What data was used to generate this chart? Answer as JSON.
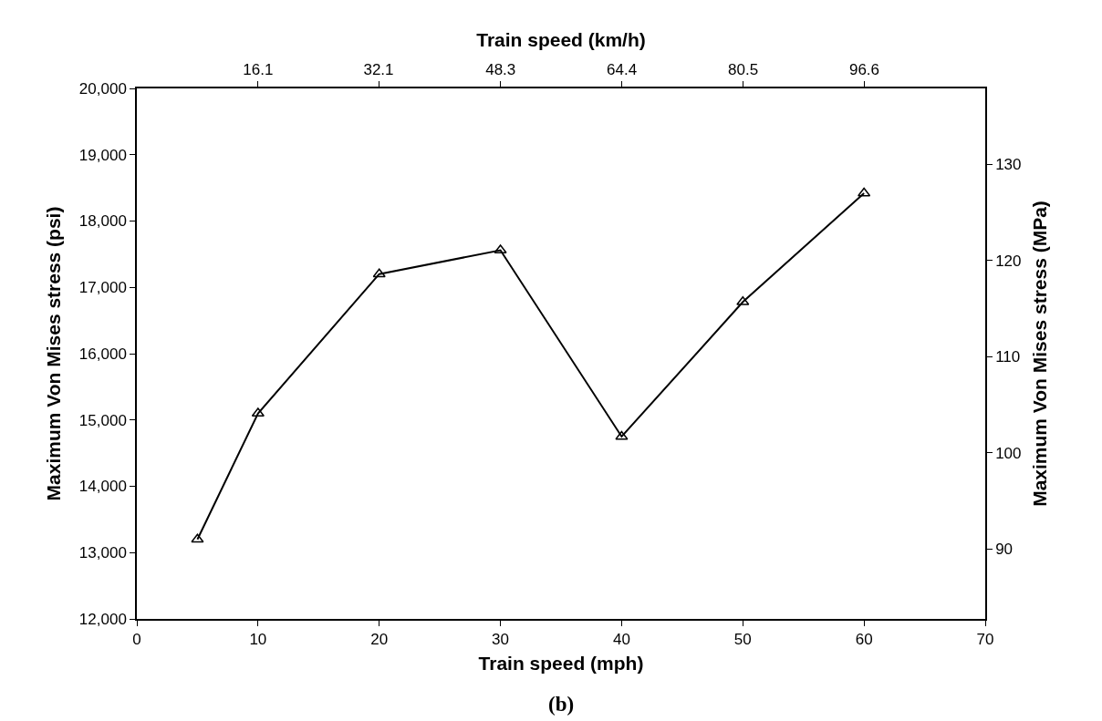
{
  "chart_data": {
    "type": "line",
    "xlabel": "Train speed (mph)",
    "ylabel": "Maximum Von Mises stress (psi)",
    "y2label": "Maximum Von Mises stress (MPa)",
    "x2label": "Train speed (km/h)",
    "annotations": [
      "(b)"
    ],
    "x": [
      5,
      10,
      20,
      30,
      40,
      50,
      60
    ],
    "series": [
      {
        "color": "#000000",
        "values": [
          13200,
          15100,
          17200,
          17560,
          14750,
          16780,
          18420
        ]
      }
    ],
    "marker": "triangle",
    "line_style": "solid",
    "grid": false,
    "xlim": [
      0,
      70
    ],
    "xticks": [
      0,
      10,
      20,
      30,
      40,
      50,
      60,
      70
    ],
    "ylim": [
      12000,
      20000
    ],
    "yticks": [
      {
        "value": 12000,
        "label": "12,000"
      },
      {
        "value": 13000,
        "label": "13,000"
      },
      {
        "value": 14000,
        "label": "14,000"
      },
      {
        "value": 15000,
        "label": "15,000"
      },
      {
        "value": 16000,
        "label": "16,000"
      },
      {
        "value": 17000,
        "label": "17,000"
      },
      {
        "value": 18000,
        "label": "18,000"
      },
      {
        "value": 19000,
        "label": "19,000"
      },
      {
        "value": 20000,
        "label": "20,000"
      }
    ],
    "y2lim": [
      82.74,
      137.9
    ],
    "y2ticks": [
      90,
      100,
      110,
      120,
      130
    ],
    "x2lim": [
      0,
      112.65
    ],
    "x2ticks": [
      16.1,
      32.1,
      48.3,
      64.4,
      80.5,
      96.6
    ]
  }
}
